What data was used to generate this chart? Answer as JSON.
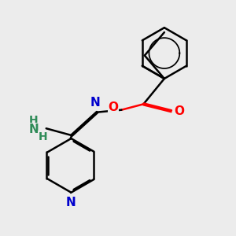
{
  "bg_color": "#ececec",
  "bond_color": "#000000",
  "N_color": "#0000cd",
  "O_color": "#ff0000",
  "NH_color": "#2e8b57",
  "bond_width": 1.8,
  "dbo": 0.04,
  "figsize": [
    3.0,
    3.0
  ],
  "dpi": 100,
  "xlim": [
    0,
    10
  ],
  "ylim": [
    0,
    10
  ]
}
